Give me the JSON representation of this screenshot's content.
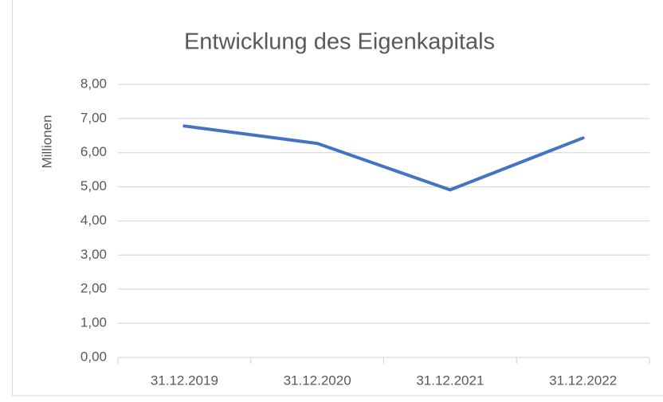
{
  "chart_data": {
    "type": "line",
    "title": "Entwicklung des Eigenkapitals",
    "y_label": "Millionen",
    "categories": [
      "31.12.2019",
      "31.12.2020",
      "31.12.2021",
      "31.12.2022"
    ],
    "values": [
      6.78,
      6.27,
      4.91,
      6.43
    ],
    "color": "#4472c4",
    "ylim": [
      0,
      8
    ],
    "yticks": [
      {
        "value": 0,
        "label": "0,00"
      },
      {
        "value": 1,
        "label": "1,00"
      },
      {
        "value": 2,
        "label": "2,00"
      },
      {
        "value": 3,
        "label": "3,00"
      },
      {
        "value": 4,
        "label": "4,00"
      },
      {
        "value": 5,
        "label": "5,00"
      },
      {
        "value": 6,
        "label": "6,00"
      },
      {
        "value": 7,
        "label": "7,00"
      },
      {
        "value": 8,
        "label": "8,00"
      }
    ],
    "grid": true
  }
}
